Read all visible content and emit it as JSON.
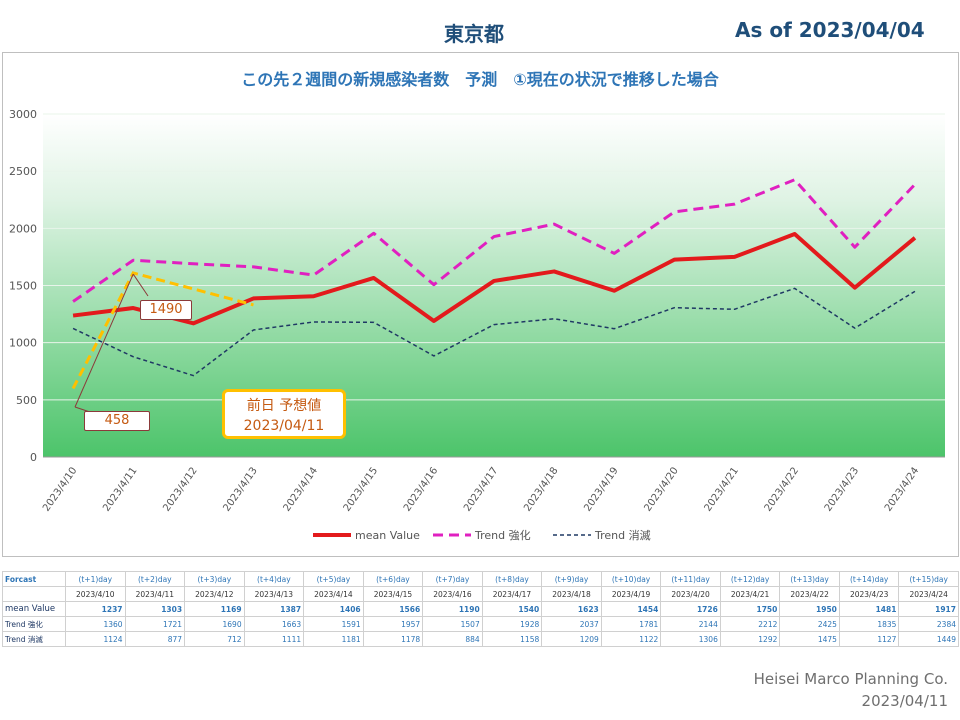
{
  "header": {
    "region": "東京都",
    "as_of": "As of 2023/04/04"
  },
  "chart_data": {
    "type": "line",
    "title": "この先２週間の新規感染者数　予測　①現在の状況で推移した場合",
    "categories": [
      "2023/4/10",
      "2023/4/11",
      "2023/4/12",
      "2023/4/13",
      "2023/4/14",
      "2023/4/15",
      "2023/4/16",
      "2023/4/17",
      "2023/4/18",
      "2023/4/19",
      "2023/4/20",
      "2023/4/21",
      "2023/4/22",
      "2023/4/23",
      "2023/4/24"
    ],
    "ylim": [
      0,
      3000
    ],
    "yticks": [
      0,
      500,
      1000,
      1500,
      2000,
      2500,
      3000
    ],
    "series": [
      {
        "name": "mean Value",
        "color": "#e31a1c",
        "style": "solid",
        "values": [
          1237,
          1303,
          1169,
          1387,
          1406,
          1566,
          1190,
          1540,
          1623,
          1454,
          1726,
          1750,
          1950,
          1481,
          1917
        ]
      },
      {
        "name": "Trend 強化",
        "color": "#e020c0",
        "style": "dash",
        "values": [
          1360,
          1721,
          1690,
          1663,
          1591,
          1957,
          1507,
          1928,
          2037,
          1781,
          2144,
          2212,
          2425,
          1835,
          2384
        ]
      },
      {
        "name": "Trend 消滅",
        "color": "#1f3864",
        "style": "dot",
        "values": [
          1124,
          877,
          712,
          1111,
          1181,
          1178,
          884,
          1158,
          1209,
          1122,
          1306,
          1292,
          1475,
          1127,
          1449
        ]
      }
    ],
    "previous_forecast": {
      "color": "#ffc000",
      "points": [
        [
          0,
          600
        ],
        [
          1,
          1610
        ],
        [
          3,
          1330
        ]
      ]
    },
    "annotations": [
      {
        "text": "1490",
        "x": 1,
        "y": 1490
      },
      {
        "text": "458",
        "x": 0,
        "y": 458
      }
    ],
    "previous_box_text": [
      "前日 予想値",
      "2023/04/11"
    ],
    "legend_position": "bottom"
  },
  "table": {
    "corner_label": "Forcast",
    "day_headers": [
      "(t+1)day",
      "(t+2)day",
      "(t+3)day",
      "(t+4)day",
      "(t+5)day",
      "(t+6)day",
      "(t+7)day",
      "(t+8)day",
      "(t+9)day",
      "(t+10)day",
      "(t+11)day",
      "(t+12)day",
      "(t+13)day",
      "(t+14)day",
      "(t+15)day"
    ],
    "dates": [
      "2023/4/10",
      "2023/4/11",
      "2023/4/12",
      "2023/4/13",
      "2023/4/14",
      "2023/4/15",
      "2023/4/16",
      "2023/4/17",
      "2023/4/18",
      "2023/4/19",
      "2023/4/20",
      "2023/4/21",
      "2023/4/22",
      "2023/4/23",
      "2023/4/24"
    ],
    "rows": [
      {
        "label": "mean Value",
        "values": [
          "1237",
          "1303",
          "1169",
          "1387",
          "1406",
          "1566",
          "1190",
          "1540",
          "1623",
          "1454",
          "1726",
          "1750",
          "1950",
          "1481",
          "1917"
        ]
      },
      {
        "label": "Trend 強化",
        "values": [
          "1360",
          "1721",
          "1690",
          "1663",
          "1591",
          "1957",
          "1507",
          "1928",
          "2037",
          "1781",
          "2144",
          "2212",
          "2425",
          "1835",
          "2384"
        ]
      },
      {
        "label": "Trend 消滅",
        "values": [
          "1124",
          "877",
          "712",
          "1111",
          "1181",
          "1178",
          "884",
          "1158",
          "1209",
          "1122",
          "1306",
          "1292",
          "1475",
          "1127",
          "1449"
        ]
      }
    ]
  },
  "footer": {
    "company": "Heisei Marco Planning Co.",
    "date": "2023/04/11"
  }
}
